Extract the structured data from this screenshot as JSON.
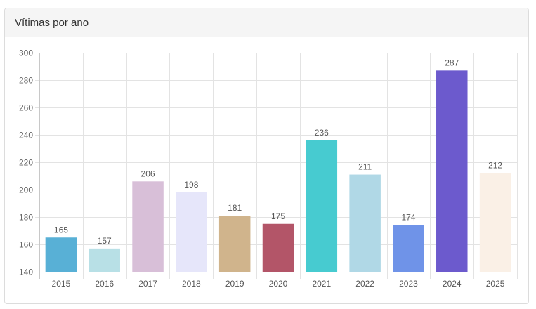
{
  "panel": {
    "title": "Vítimas por ano"
  },
  "chart_data": {
    "type": "bar",
    "title": "Vítimas por ano",
    "xlabel": "",
    "ylabel": "",
    "categories": [
      "2015",
      "2016",
      "2017",
      "2018",
      "2019",
      "2020",
      "2021",
      "2022",
      "2023",
      "2024",
      "2025"
    ],
    "values": [
      165,
      157,
      206,
      198,
      181,
      175,
      236,
      211,
      174,
      287,
      212
    ],
    "colors": [
      "#58b0d6",
      "#b8e0e6",
      "#d8bfd8",
      "#e6e6fa",
      "#d0b48c",
      "#b35568",
      "#47cbd0",
      "#b0d8e6",
      "#6f93e8",
      "#6c5acd",
      "#faf0e6"
    ],
    "ylim": [
      140,
      300
    ],
    "yticks": [
      140,
      160,
      180,
      200,
      220,
      240,
      260,
      280,
      300
    ],
    "grid": true,
    "legend": false,
    "data_labels": true
  }
}
